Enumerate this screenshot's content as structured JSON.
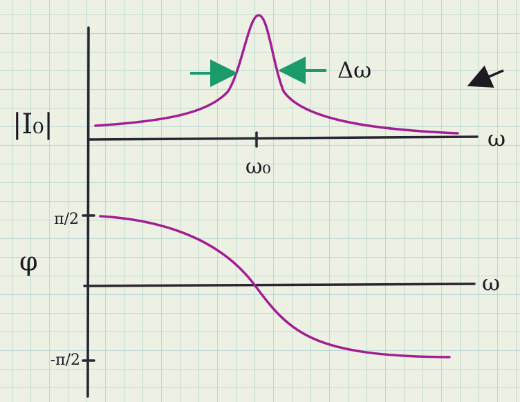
{
  "labels": {
    "amplitude_axis": "|I₀|",
    "amplitude_x_axis": "ω",
    "resonance_tick": "ω₀",
    "width_label": "Δω",
    "phase_axis": "φ",
    "phase_top_tick": "π/2",
    "phase_bottom_tick": "-π/2",
    "phase_x_axis": "ω"
  }
}
